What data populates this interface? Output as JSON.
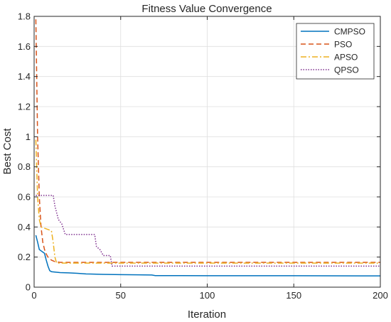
{
  "chart_data": {
    "type": "line",
    "title": "Fitness Value Convergence",
    "xlabel": "Iteration",
    "ylabel": "Best Cost",
    "xlim": [
      0,
      200
    ],
    "ylim": [
      0,
      1.8
    ],
    "xticks": [
      0,
      50,
      100,
      150,
      200
    ],
    "yticks": [
      0,
      0.2,
      0.4,
      0.6,
      0.8,
      1,
      1.2,
      1.4,
      1.6,
      1.8
    ],
    "xtick_labels": [
      "0",
      "50",
      "100",
      "150",
      "200"
    ],
    "ytick_labels": [
      "0",
      "0.2",
      "0.4",
      "0.6",
      "0.8",
      "1",
      "1.2",
      "1.4",
      "1.6",
      "1.8"
    ],
    "grid": true,
    "legend_position": "top-right",
    "series": [
      {
        "name": "CMPSO",
        "color": "#0072BD",
        "style": "solid",
        "x": [
          1,
          2,
          3,
          6,
          7,
          8,
          9,
          10,
          15,
          20,
          25,
          30,
          40,
          50,
          60,
          68,
          70,
          80,
          100,
          150,
          200
        ],
        "y": [
          0.345,
          0.3,
          0.25,
          0.225,
          0.18,
          0.14,
          0.11,
          0.103,
          0.097,
          0.095,
          0.092,
          0.088,
          0.085,
          0.083,
          0.082,
          0.081,
          0.077,
          0.077,
          0.076,
          0.076,
          0.075
        ]
      },
      {
        "name": "PSO",
        "color": "#D95319",
        "style": "dashed",
        "x": [
          1,
          2,
          3,
          4,
          5,
          6,
          7,
          8,
          10,
          12,
          15,
          200
        ],
        "y": [
          1.78,
          1.0,
          0.6,
          0.4,
          0.3,
          0.25,
          0.22,
          0.2,
          0.18,
          0.17,
          0.165,
          0.165
        ]
      },
      {
        "name": "APSO",
        "color": "#EDB120",
        "style": "dashdot",
        "x": [
          1,
          2,
          3,
          4,
          10,
          11,
          12,
          13,
          200
        ],
        "y": [
          0.98,
          0.6,
          0.45,
          0.4,
          0.375,
          0.3,
          0.2,
          0.16,
          0.16
        ]
      },
      {
        "name": "QPSO",
        "color": "#7E2F8E",
        "style": "dotted",
        "x": [
          1,
          11,
          12,
          14,
          16,
          18,
          35,
          36,
          38,
          40,
          44,
          45,
          200
        ],
        "y": [
          0.61,
          0.61,
          0.54,
          0.45,
          0.42,
          0.35,
          0.35,
          0.27,
          0.25,
          0.21,
          0.21,
          0.14,
          0.14
        ]
      }
    ]
  }
}
